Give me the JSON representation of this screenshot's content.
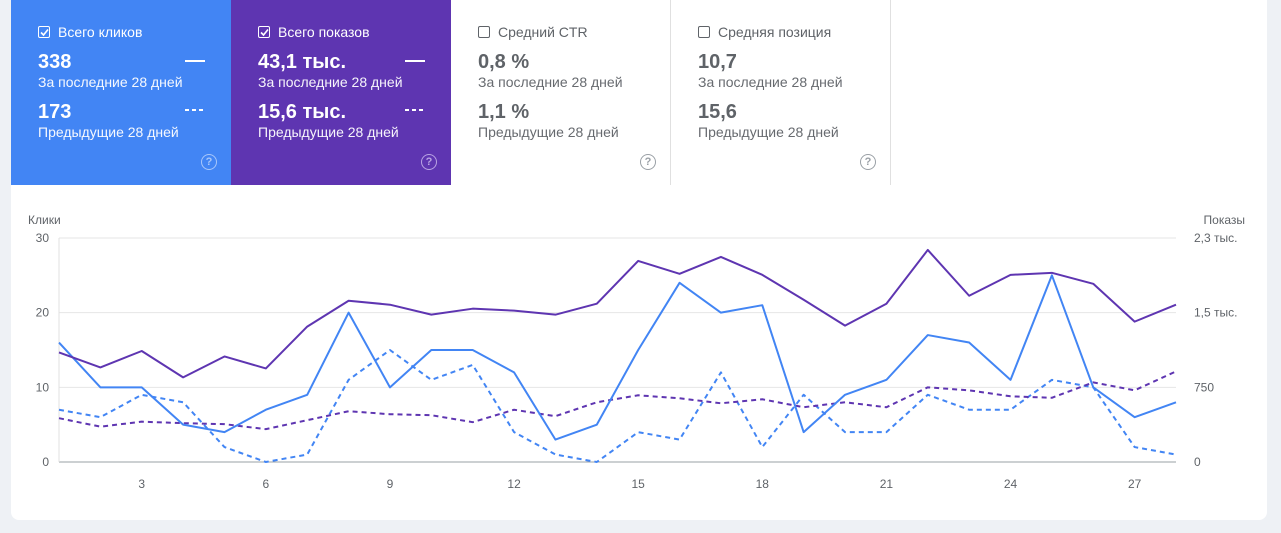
{
  "cards": [
    {
      "key": "clicks",
      "label": "Всего кликов",
      "checked": true,
      "value": "338",
      "period": "За последние 28 дней",
      "prev_value": "173",
      "prev_period": "Предыдущие 28 дней",
      "help": "?"
    },
    {
      "key": "impr",
      "label": "Всего показов",
      "checked": true,
      "value": "43,1 тыс.",
      "period": "За последние 28 дней",
      "prev_value": "15,6 тыс.",
      "prev_period": "Предыдущие 28 дней",
      "help": "?"
    },
    {
      "key": "ctr",
      "label": "Средний CTR",
      "checked": false,
      "value": "0,8 %",
      "period": "За последние 28 дней",
      "prev_value": "1,1 %",
      "prev_period": "Предыдущие 28 дней",
      "help": "?"
    },
    {
      "key": "pos",
      "label": "Средняя позиция",
      "checked": false,
      "value": "10,7",
      "period": "За последние 28 дней",
      "prev_value": "15,6",
      "prev_period": "Предыдущие 28 дней",
      "help": "?"
    }
  ],
  "chart_data": {
    "type": "line",
    "ylabel_left": "Клики",
    "ylabel_right": "Показы",
    "y_left_ticks": [
      "0",
      "10",
      "20",
      "30"
    ],
    "y_left_range": [
      0,
      30
    ],
    "y_right_ticks": [
      "0",
      "750",
      "1,5 тыс.",
      "2,3 тыс."
    ],
    "y_right_range": [
      0,
      2250
    ],
    "x_ticks": [
      "3",
      "6",
      "9",
      "12",
      "15",
      "18",
      "21",
      "24",
      "27"
    ],
    "x": [
      1,
      2,
      3,
      4,
      5,
      6,
      7,
      8,
      9,
      10,
      11,
      12,
      13,
      14,
      15,
      16,
      17,
      18,
      19,
      20,
      21,
      22,
      23,
      24,
      25,
      26,
      27,
      28
    ],
    "series": [
      {
        "name": "Всего кликов",
        "axis": "left",
        "style": "solid",
        "color": "#4285f4",
        "values": [
          16,
          10,
          10,
          5,
          4,
          7,
          9,
          20,
          10,
          15,
          15,
          12,
          3,
          5,
          15,
          24,
          20,
          21,
          4,
          9,
          11,
          17,
          16,
          11,
          25,
          10,
          6,
          8
        ]
      },
      {
        "name": "Всего кликов",
        "axis": "left",
        "style": "dashed",
        "color": "#4285f4",
        "values": [
          7,
          6,
          9,
          8,
          2,
          0,
          1,
          11,
          15,
          11,
          13,
          4,
          1,
          0,
          4,
          3,
          12,
          2,
          9,
          4,
          4,
          9,
          7,
          7,
          11,
          10,
          2,
          1
        ]
      },
      {
        "name": "Всего показов",
        "axis": "right",
        "style": "solid",
        "color": "#5e35b1",
        "values": [
          1100,
          950,
          1115,
          850,
          1060,
          940,
          1360,
          1620,
          1580,
          1480,
          1540,
          1520,
          1480,
          1590,
          2020,
          1890,
          2060,
          1880,
          1630,
          1370,
          1590,
          2130,
          1670,
          1880,
          1900,
          1790,
          1410,
          1580
        ]
      },
      {
        "name": "Всего показов",
        "axis": "right",
        "style": "dashed",
        "color": "#5e35b1",
        "values": [
          440,
          355,
          405,
          390,
          380,
          330,
          420,
          510,
          480,
          470,
          400,
          525,
          460,
          600,
          670,
          640,
          590,
          630,
          550,
          600,
          550,
          750,
          720,
          660,
          645,
          800,
          720,
          910
        ]
      }
    ]
  }
}
